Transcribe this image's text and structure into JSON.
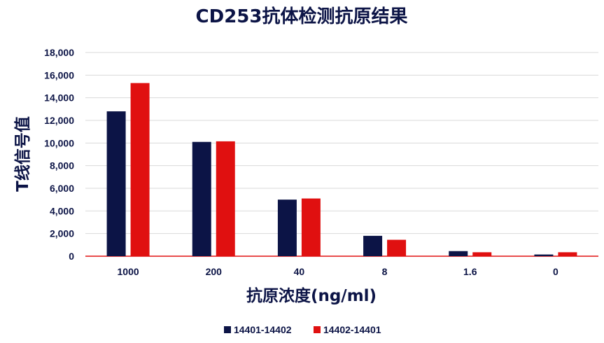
{
  "chart_data": {
    "type": "bar",
    "title": "CD253抗体检测抗原结果",
    "xlabel": "抗原浓度(ng/ml)",
    "ylabel": "T线信号值",
    "categories": [
      "1000",
      "200",
      "40",
      "8",
      "1.6",
      "0"
    ],
    "series": [
      {
        "name": "14401-14402",
        "color": "#0c1446",
        "values": [
          12800,
          10100,
          5000,
          1800,
          450,
          150
        ]
      },
      {
        "name": "14402-14401",
        "color": "#e01010",
        "values": [
          15300,
          10150,
          5100,
          1450,
          350,
          350
        ]
      }
    ],
    "ylim": [
      0,
      18000
    ],
    "yticks": [
      "0",
      "2,000",
      "4,000",
      "6,000",
      "8,000",
      "10,000",
      "12,000",
      "14,000",
      "16,000",
      "18,000"
    ],
    "ytick_values": [
      0,
      2000,
      4000,
      6000,
      8000,
      10000,
      12000,
      14000,
      16000,
      18000
    ],
    "grid": true,
    "legend_position": "bottom",
    "colors": {
      "title": "#0c1446",
      "axis_title": "#0c1446",
      "tick_text": "#0c1446",
      "grid": "#d9d9d9",
      "baseline": "#e01010"
    }
  }
}
